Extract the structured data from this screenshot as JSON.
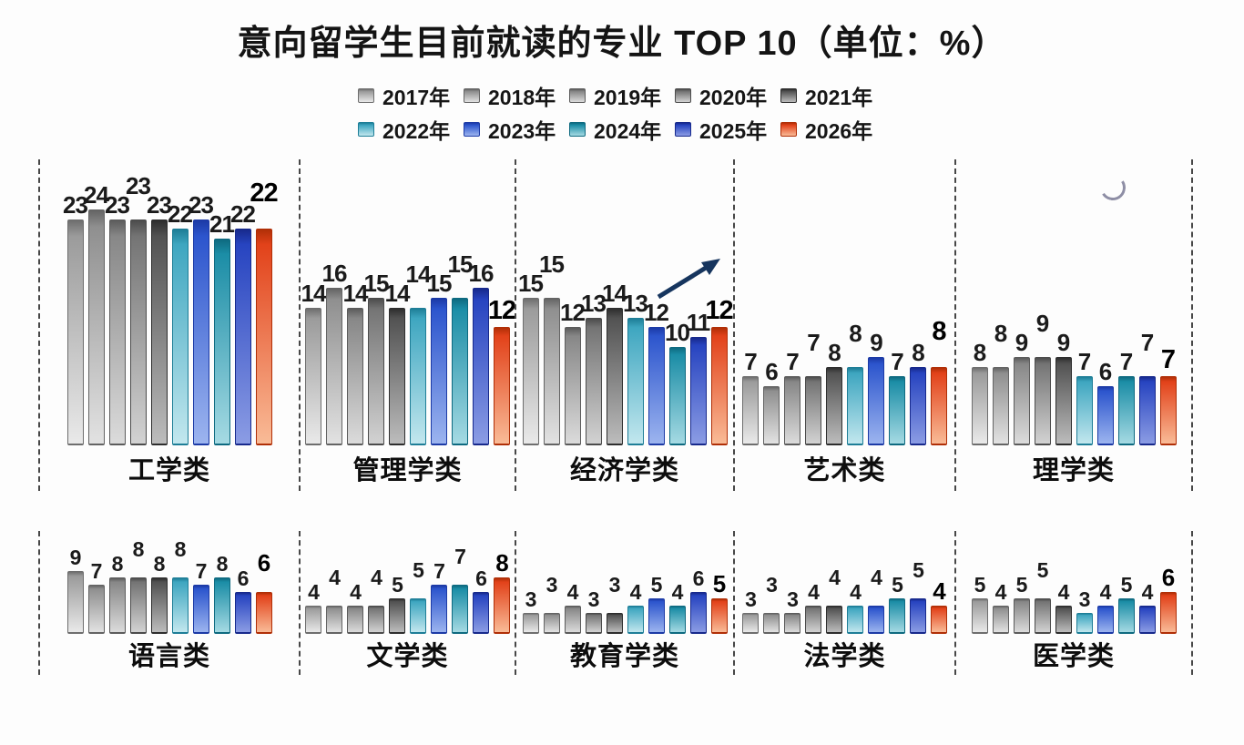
{
  "chart_data": {
    "type": "bar",
    "title": "意向留学生目前就读的专业 TOP 10",
    "unit_label": "（单位：%）",
    "legend_position": "top-center",
    "grid": "off",
    "value_labels": "above-bars",
    "highlight_year": "2026年",
    "years": [
      "2017年",
      "2018年",
      "2019年",
      "2020年",
      "2021年",
      "2022年",
      "2023年",
      "2024年",
      "2025年",
      "2026年"
    ],
    "legend_rows": [
      [
        "2017年",
        "2018年",
        "2019年",
        "2020年",
        "2021年"
      ],
      [
        "2022年",
        "2023年",
        "2024年",
        "2025年",
        "2026年"
      ]
    ],
    "series_colors": [
      {
        "year": "2017年",
        "key": "2017",
        "top": "#9b9b9b",
        "bottom": "#e9e9e9",
        "border": "#6e6e6e"
      },
      {
        "year": "2018年",
        "key": "2018",
        "top": "#8f8f8f",
        "bottom": "#e2e2e2",
        "border": "#646464"
      },
      {
        "year": "2019年",
        "key": "2019",
        "top": "#878787",
        "bottom": "#dbdbdb",
        "border": "#5c5c5c"
      },
      {
        "year": "2020年",
        "key": "2020",
        "top": "#747474",
        "bottom": "#d2d2d2",
        "border": "#4c4c4c"
      },
      {
        "year": "2021年",
        "key": "2021",
        "top": "#525252",
        "bottom": "#bcbcbc",
        "border": "#2e2e2e"
      },
      {
        "year": "2022年",
        "key": "2022",
        "top": "#3ea6c0",
        "bottom": "#c2e7ee",
        "border": "#1e7e97"
      },
      {
        "year": "2023年",
        "key": "2023",
        "top": "#2c55cd",
        "bottom": "#9cb4ef",
        "border": "#1c3aa6"
      },
      {
        "year": "2024年",
        "key": "2024",
        "top": "#1b8da6",
        "bottom": "#a5dae3",
        "border": "#0e6a80"
      },
      {
        "year": "2025年",
        "key": "2025",
        "top": "#2744c0",
        "bottom": "#8b9ce4",
        "border": "#17298c"
      },
      {
        "year": "2026年",
        "key": "2026",
        "top": "#e2421a",
        "bottom": "#f9bb97",
        "border": "#b02f07"
      }
    ],
    "groups": [
      {
        "key": "engineering",
        "category": "工学类",
        "row": 1,
        "values": [
          23,
          24,
          23,
          23,
          23,
          22,
          23,
          21,
          22,
          22
        ]
      },
      {
        "key": "management",
        "category": "管理学类",
        "row": 1,
        "values": [
          14,
          16,
          14,
          15,
          14,
          14,
          15,
          15,
          16,
          12
        ]
      },
      {
        "key": "economics",
        "category": "经济学类",
        "row": 1,
        "values": [
          15,
          15,
          12,
          13,
          14,
          13,
          12,
          10,
          11,
          12
        ]
      },
      {
        "key": "arts",
        "category": "艺术类",
        "row": 1,
        "values": [
          7,
          6,
          7,
          7,
          8,
          8,
          9,
          7,
          8,
          8
        ]
      },
      {
        "key": "science",
        "category": "理学类",
        "row": 1,
        "values": [
          8,
          8,
          9,
          9,
          9,
          7,
          6,
          7,
          7,
          7
        ]
      },
      {
        "key": "languages",
        "category": "语言类",
        "row": 2,
        "values": [
          9,
          7,
          8,
          8,
          8,
          8,
          7,
          8,
          6,
          6
        ]
      },
      {
        "key": "literature",
        "category": "文学类",
        "row": 2,
        "values": [
          4,
          4,
          4,
          4,
          5,
          5,
          7,
          7,
          6,
          8
        ]
      },
      {
        "key": "education",
        "category": "教育学类",
        "row": 2,
        "values": [
          3,
          3,
          4,
          3,
          3,
          4,
          5,
          4,
          6,
          5
        ]
      },
      {
        "key": "law",
        "category": "法学类",
        "row": 2,
        "values": [
          3,
          3,
          3,
          4,
          4,
          4,
          4,
          5,
          5,
          4
        ]
      },
      {
        "key": "medicine",
        "category": "医学类",
        "row": 2,
        "values": [
          5,
          4,
          5,
          5,
          4,
          3,
          4,
          5,
          4,
          6
        ]
      }
    ],
    "annotation": {
      "group_key": "economics",
      "type": "up-trend-arrow",
      "color": "#16355e"
    }
  }
}
